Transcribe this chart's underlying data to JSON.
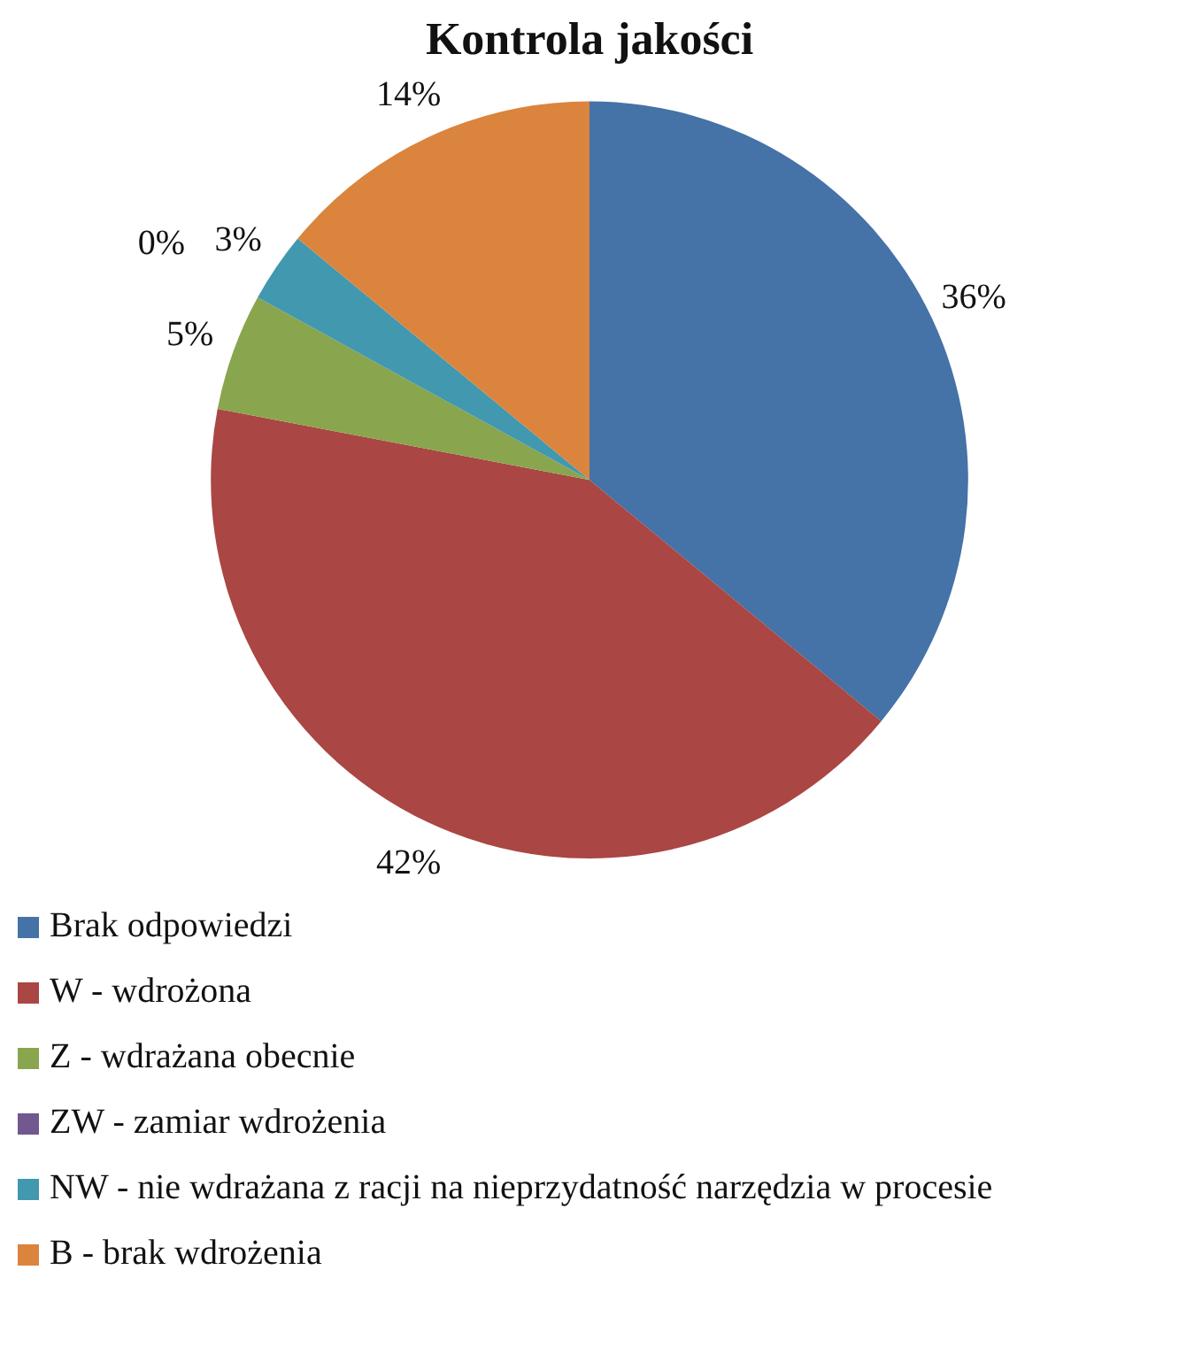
{
  "chart_data": {
    "type": "pie",
    "title": "Kontrola jakości",
    "categories": [
      "Brak odpowiedzi",
      "W - wdrożona",
      "Z - wdrażana obecnie",
      "ZW - zamiar wdrożenia",
      "NW - nie wdrażana z racji na nieprzydatność narzędzia w procesie",
      "B - brak wdrożenia"
    ],
    "values": [
      36,
      42,
      5,
      0,
      3,
      14
    ],
    "colors": [
      "#4572a7",
      "#aa4643",
      "#89a54e",
      "#71588f",
      "#4198af",
      "#db843d"
    ],
    "value_labels": [
      "36%",
      "42%",
      "5%",
      "0%",
      "3%",
      "14%"
    ],
    "legend": "bottom"
  }
}
